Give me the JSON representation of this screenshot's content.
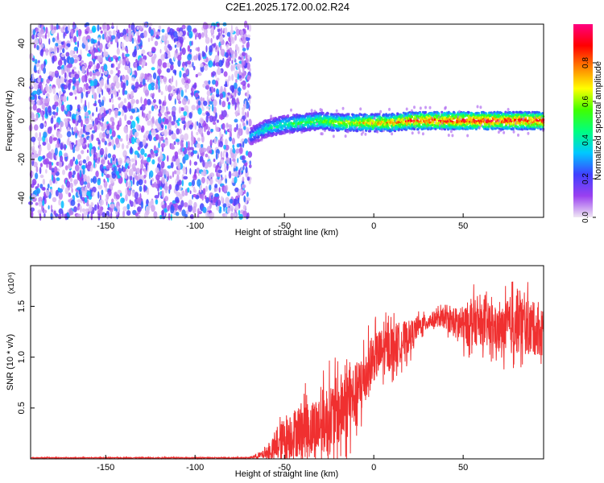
{
  "title": "C2E1.2025.172.00.02.R24",
  "chart_data": [
    {
      "type": "heatmap",
      "title": "C2E1.2025.172.00.02.R24",
      "xlabel": "Height of straight line (km)",
      "ylabel": "Frequency (Hz)",
      "xlim": [
        -192,
        95
      ],
      "ylim": [
        -50,
        50
      ],
      "x_ticks": [
        -150,
        -100,
        -50,
        0,
        50
      ],
      "y_ticks": [
        -40,
        -20,
        0,
        20,
        40
      ],
      "colorbar": {
        "label": "Normalized spectral amplitude",
        "range": [
          0,
          1
        ],
        "ticks": [
          "0.0",
          "0.2",
          "0.4",
          "0.6",
          "0.8"
        ],
        "colors": [
          "#f0e8f4",
          "#9a40f0",
          "#4040ff",
          "#00c8ff",
          "#00ff80",
          "#40ff00",
          "#ffff00",
          "#ff8000",
          "#ff0000",
          "#ff0080"
        ]
      },
      "noise_region_x": [
        -192,
        -69
      ],
      "noise_amplitude_range": [
        0.02,
        0.2
      ],
      "signal_track": [
        {
          "x": -69,
          "y": -8,
          "amp": 0.35
        },
        {
          "x": -60,
          "y": -4,
          "amp": 0.45
        },
        {
          "x": -50,
          "y": -2,
          "amp": 0.5
        },
        {
          "x": -40,
          "y": -1,
          "amp": 0.55
        },
        {
          "x": -30,
          "y": 0,
          "amp": 0.6
        },
        {
          "x": -20,
          "y": -1,
          "amp": 0.65
        },
        {
          "x": -10,
          "y": -1,
          "amp": 0.7
        },
        {
          "x": 0,
          "y": -1,
          "amp": 0.78
        },
        {
          "x": 10,
          "y": -1,
          "amp": 0.82
        },
        {
          "x": 20,
          "y": 0,
          "amp": 0.88
        },
        {
          "x": 30,
          "y": 0,
          "amp": 0.92
        },
        {
          "x": 40,
          "y": 0,
          "amp": 0.95
        },
        {
          "x": 50,
          "y": 0,
          "amp": 0.96
        },
        {
          "x": 60,
          "y": 0,
          "amp": 0.97
        },
        {
          "x": 70,
          "y": 0,
          "amp": 0.95
        },
        {
          "x": 80,
          "y": 0,
          "amp": 0.96
        },
        {
          "x": 95,
          "y": 0,
          "amp": 0.95
        }
      ]
    },
    {
      "type": "line",
      "xlabel": "Height of straight line (km)",
      "ylabel": "SNR (10 * v/v)",
      "y_multiplier": "(x10⁴)",
      "xlim": [
        -192,
        95
      ],
      "ylim": [
        0,
        1.9
      ],
      "x_ticks": [
        -150,
        -100,
        -50,
        0,
        50
      ],
      "y_ticks": [
        "0.5",
        "1.0",
        "1.5"
      ],
      "y_tick_values": [
        0.5,
        1.0,
        1.5
      ],
      "color": "#f03030",
      "envelope": {
        "x": [
          -192,
          -70,
          -62,
          -55,
          -50,
          -45,
          -40,
          -35,
          -30,
          -25,
          -20,
          -15,
          -10,
          -5,
          0,
          5,
          10,
          15,
          20,
          25,
          30,
          35,
          40,
          50,
          55,
          60,
          65,
          70,
          75,
          80,
          85,
          95
        ],
        "mean": [
          0.01,
          0.01,
          0.04,
          0.1,
          0.2,
          0.25,
          0.3,
          0.28,
          0.35,
          0.4,
          0.45,
          0.55,
          0.62,
          0.8,
          1.0,
          1.05,
          1.1,
          1.15,
          1.2,
          1.3,
          1.35,
          1.38,
          1.38,
          1.3,
          1.35,
          1.32,
          1.3,
          1.25,
          1.3,
          1.35,
          1.3,
          1.25
        ],
        "spread": [
          0.005,
          0.006,
          0.05,
          0.15,
          0.3,
          0.3,
          0.35,
          0.35,
          0.4,
          0.45,
          0.45,
          0.45,
          0.4,
          0.38,
          0.3,
          0.3,
          0.28,
          0.25,
          0.2,
          0.12,
          0.1,
          0.1,
          0.12,
          0.25,
          0.3,
          0.25,
          0.3,
          0.25,
          0.35,
          0.4,
          0.35,
          0.3
        ]
      }
    }
  ]
}
